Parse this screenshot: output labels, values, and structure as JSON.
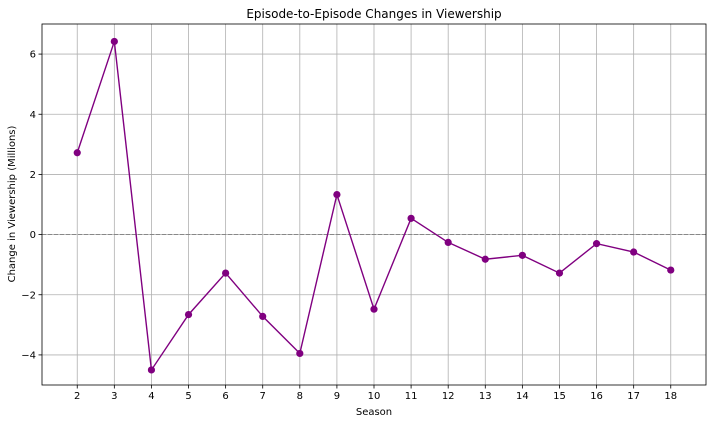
{
  "chart_data": {
    "type": "line",
    "title": "Episode-to-Episode Changes in Viewership",
    "xlabel": "Season",
    "ylabel": "Change in Viewership (Millions)",
    "x": [
      2,
      3,
      4,
      5,
      6,
      7,
      8,
      9,
      10,
      11,
      12,
      13,
      14,
      15,
      16,
      17,
      18
    ],
    "series": [
      {
        "values": [
          2.72,
          6.42,
          -4.5,
          -2.66,
          -1.28,
          -2.72,
          -3.95,
          1.33,
          -2.48,
          0.54,
          -0.26,
          -0.82,
          -0.69,
          -1.28,
          -0.3,
          -0.58,
          -1.18
        ],
        "color": "#800080",
        "marker": "circle"
      }
    ],
    "xlim": [
      1.05,
      18.95
    ],
    "ylim": [
      -5,
      7
    ],
    "yticks": [
      -4,
      -2,
      0,
      2,
      4,
      6
    ],
    "reference_line": {
      "y": 0,
      "style": "dashed",
      "color": "#808080"
    },
    "grid": true
  }
}
